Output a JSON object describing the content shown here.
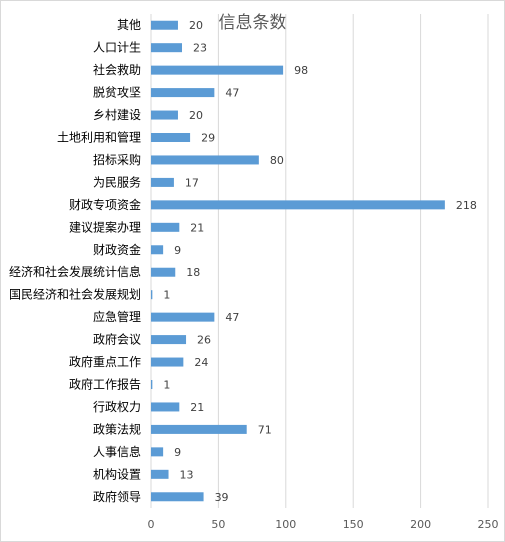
{
  "chart_data": {
    "type": "bar",
    "orientation": "horizontal",
    "title": "信息条数",
    "categories": [
      "其他",
      "人口计生",
      "社会救助",
      "脱贫攻坚",
      "乡村建设",
      "土地利用和管理",
      "招标采购",
      "为民服务",
      "财政专项资金",
      "建议提案办理",
      "财政资金",
      "经济和社会发展统计信息",
      "国民经济和社会发展规划",
      "应急管理",
      "政府会议",
      "政府重点工作",
      "政府工作报告",
      "行政权力",
      "政策法规",
      "人事信息",
      "机构设置",
      "政府领导"
    ],
    "values": [
      20,
      23,
      98,
      47,
      20,
      29,
      80,
      17,
      218,
      21,
      9,
      18,
      1,
      47,
      26,
      24,
      1,
      21,
      71,
      9,
      13,
      39
    ],
    "xlim": [
      0,
      250
    ],
    "xticks": [
      "0",
      "50",
      "100",
      "150",
      "200",
      "250"
    ],
    "grid": true,
    "bar_color": "#5b9bd5",
    "grid_color": "#d9d9d9",
    "data_labels": true
  }
}
